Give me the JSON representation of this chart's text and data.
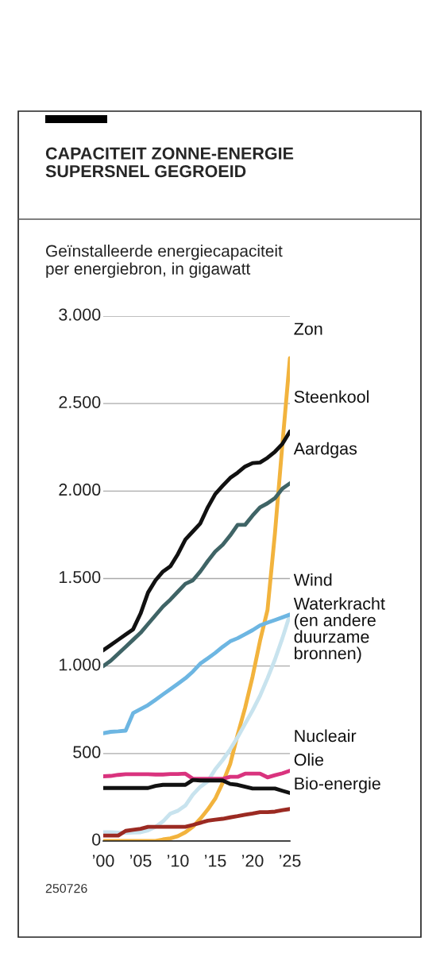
{
  "chart_data": {
    "type": "line",
    "title": "CAPACITEIT ZONNE-ENERGIE\nSUPERSNEL GEGROEID",
    "subtitle": "Geïnstalleerde energiecapaciteit\nper energiebron, in gigawatt",
    "x": [
      2000,
      2001,
      2002,
      2003,
      2004,
      2005,
      2006,
      2007,
      2008,
      2009,
      2010,
      2011,
      2012,
      2013,
      2014,
      2015,
      2016,
      2017,
      2018,
      2019,
      2020,
      2021,
      2022,
      2023,
      2024,
      2025
    ],
    "series": [
      {
        "name": "Zon",
        "color": "#f2b33d",
        "values": [
          0,
          0,
          0,
          0,
          0,
          0,
          0,
          0,
          9,
          15,
          28,
          50,
          81,
          127,
          180,
          242,
          333,
          440,
          608,
          761,
          939,
          1144,
          1320,
          1760,
          2270,
          2760
        ]
      },
      {
        "name": "Steenkool",
        "color": "#111111",
        "values": [
          1090,
          1120,
          1150,
          1180,
          1210,
          1300,
          1420,
          1490,
          1540,
          1570,
          1640,
          1723,
          1769,
          1815,
          1907,
          1983,
          2030,
          2075,
          2105,
          2140,
          2160,
          2163,
          2190,
          2225,
          2270,
          2340
        ]
      },
      {
        "name": "Aardgas",
        "color": "#3f6466",
        "values": [
          1000,
          1030,
          1070,
          1110,
          1150,
          1190,
          1240,
          1290,
          1340,
          1380,
          1425,
          1470,
          1490,
          1540,
          1600,
          1654,
          1693,
          1746,
          1807,
          1807,
          1860,
          1907,
          1930,
          1960,
          2014,
          2044
        ]
      },
      {
        "name": "Wind",
        "color": "#c8e3ee",
        "values": [
          50,
          50,
          48,
          46,
          48,
          50,
          61,
          81,
          112,
          157,
          173,
          203,
          265,
          310,
          341,
          410,
          463,
          524,
          593,
          670,
          746,
          830,
          930,
          1037,
          1159,
          1294
        ]
      },
      {
        "name": "Waterkracht\n(en andere\nduurzame\nbronnen)",
        "color": "#6db6e2",
        "values": [
          616,
          624,
          627,
          631,
          731,
          754,
          777,
          807,
          838,
          868,
          899,
          930,
          968,
          1014,
          1044,
          1075,
          1110,
          1141,
          1159,
          1182,
          1205,
          1232,
          1248,
          1263,
          1278,
          1294
        ]
      },
      {
        "name": "Nucleair",
        "color": "#d9337e",
        "values": [
          370,
          372,
          378,
          382,
          382,
          382,
          382,
          380,
          380,
          383,
          383,
          385,
          356,
          355,
          355,
          355,
          355,
          367,
          367,
          385,
          385,
          385,
          364,
          376,
          387,
          402
        ]
      },
      {
        "name": "Olie",
        "color": "#111111",
        "values": [
          303,
          303,
          303,
          303,
          303,
          303,
          303,
          315,
          321,
          321,
          321,
          321,
          349,
          346,
          346,
          346,
          346,
          326,
          321,
          310,
          300,
          300,
          300,
          300,
          287,
          275
        ]
      },
      {
        "name": "Bio-energie",
        "color": "#9b2a22",
        "values": [
          31,
          31,
          31,
          58,
          64,
          70,
          81,
          81,
          81,
          81,
          81,
          81,
          92,
          104,
          116,
          122,
          127,
          135,
          142,
          150,
          157,
          165,
          165,
          168,
          176,
          183
        ]
      }
    ],
    "xlim": [
      2000,
      2025
    ],
    "xticks": [
      {
        "value": 2000,
        "label": "’00"
      },
      {
        "value": 2005,
        "label": "’05"
      },
      {
        "value": 2010,
        "label": "’10"
      },
      {
        "value": 2015,
        "label": "’15"
      },
      {
        "value": 2020,
        "label": "’20"
      },
      {
        "value": 2025,
        "label": "’25"
      }
    ],
    "ylim": [
      0,
      3000
    ],
    "yticks": [
      0,
      {
        "value": 500,
        "label": "500"
      },
      {
        "value": 1000,
        "label": "1.000"
      },
      {
        "value": 1500,
        "label": "1.500"
      },
      {
        "value": 2000,
        "label": "2.000"
      },
      {
        "value": 2500,
        "label": "2.500"
      },
      {
        "value": 3000,
        "label": "3.000"
      }
    ],
    "grid": "y",
    "legend": false,
    "annotations": [
      "250726"
    ]
  }
}
